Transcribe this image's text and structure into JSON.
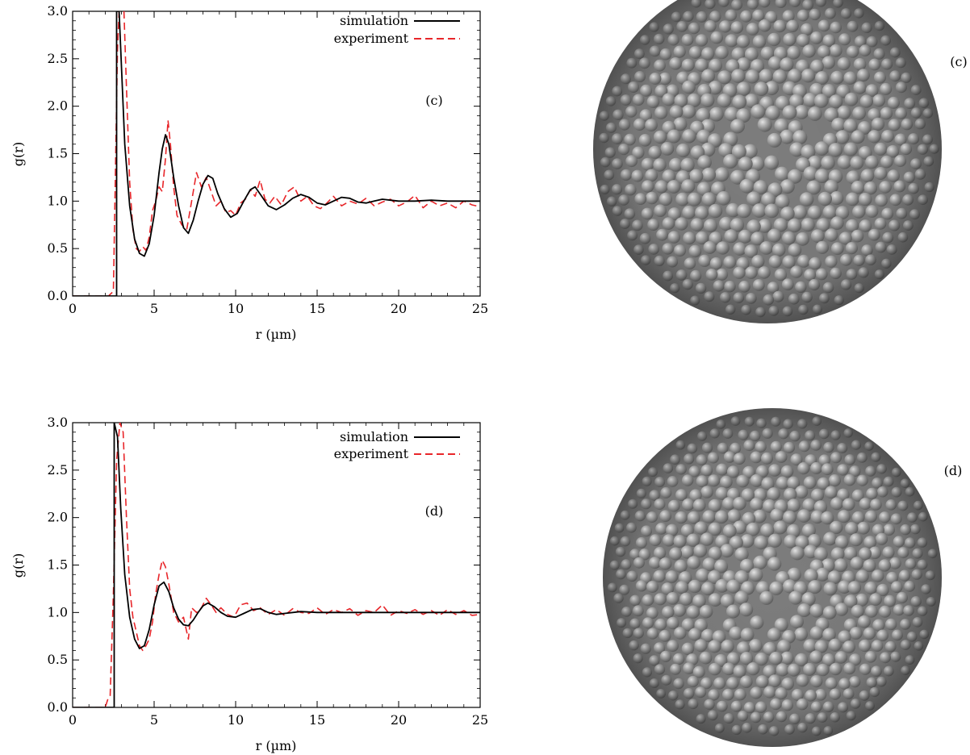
{
  "figure": {
    "panels": [
      {
        "letter": "(c)",
        "sphere_label": "(c)"
      },
      {
        "letter": "(d)",
        "sphere_label": "(d)"
      }
    ]
  },
  "chart_data": [
    {
      "type": "line",
      "panel": "(c)",
      "xlabel": "r (µm)",
      "ylabel": "g(r)",
      "xlim": [
        0,
        25
      ],
      "ylim": [
        0,
        3.0
      ],
      "xticks": [
        "0",
        "5",
        "10",
        "15",
        "20",
        "25"
      ],
      "yticks": [
        "0.0",
        "0.5",
        "1.0",
        "1.5",
        "2.0",
        "2.5",
        "3.0"
      ],
      "legend_position": "top-right",
      "series": [
        {
          "name": "simulation",
          "color": "#000000",
          "dash": "solid",
          "x": [
            0,
            2.7,
            2.7,
            2.85,
            3.0,
            3.2,
            3.5,
            3.8,
            4.1,
            4.4,
            4.7,
            5.0,
            5.3,
            5.5,
            5.7,
            5.9,
            6.2,
            6.5,
            6.8,
            7.1,
            7.4,
            7.7,
            8.0,
            8.3,
            8.6,
            8.9,
            9.3,
            9.7,
            10.1,
            10.5,
            10.9,
            11.2,
            11.6,
            12.0,
            12.5,
            13.0,
            13.5,
            14.0,
            14.5,
            15.0,
            15.5,
            16.0,
            16.5,
            17.0,
            17.5,
            18.0,
            18.5,
            19.0,
            19.5,
            20.0,
            21.0,
            22.0,
            23.0,
            24.0,
            25.0
          ],
          "y": [
            0,
            0,
            3.0,
            3.0,
            2.4,
            1.6,
            0.95,
            0.6,
            0.45,
            0.42,
            0.55,
            0.85,
            1.3,
            1.55,
            1.7,
            1.6,
            1.25,
            0.95,
            0.72,
            0.66,
            0.8,
            1.0,
            1.18,
            1.27,
            1.24,
            1.08,
            0.92,
            0.83,
            0.87,
            1.0,
            1.12,
            1.15,
            1.05,
            0.95,
            0.91,
            0.96,
            1.03,
            1.07,
            1.04,
            0.98,
            0.96,
            1.0,
            1.04,
            1.03,
            0.99,
            0.98,
            1.0,
            1.02,
            1.01,
            1.0,
            1.0,
            1.01,
            1.0,
            1.0,
            1.0
          ]
        },
        {
          "name": "experiment",
          "color": "#e8262a",
          "dash": "dashed",
          "x": [
            0,
            2.2,
            2.5,
            2.75,
            2.85,
            3.0,
            3.15,
            3.3,
            3.5,
            3.7,
            3.9,
            4.1,
            4.3,
            4.5,
            4.7,
            4.9,
            5.1,
            5.3,
            5.5,
            5.7,
            5.85,
            6.0,
            6.2,
            6.4,
            6.7,
            7.0,
            7.3,
            7.6,
            7.9,
            8.2,
            8.5,
            8.8,
            9.1,
            9.4,
            9.7,
            10.0,
            10.3,
            10.6,
            10.9,
            11.2,
            11.5,
            11.8,
            12.1,
            12.4,
            12.8,
            13.2,
            13.6,
            14.0,
            14.4,
            14.8,
            15.2,
            15.6,
            16.0,
            16.5,
            17.0,
            17.5,
            18.0,
            18.5,
            19.0,
            19.5,
            20.0,
            20.5,
            21.0,
            21.5,
            22.0,
            22.5,
            23.0,
            23.5,
            24.0,
            24.5,
            25.0
          ],
          "y": [
            0,
            0,
            0.05,
            2.6,
            3.0,
            3.0,
            3.0,
            2.2,
            1.2,
            0.7,
            0.5,
            0.47,
            0.52,
            0.48,
            0.62,
            0.9,
            1.0,
            1.15,
            1.1,
            1.45,
            1.85,
            1.6,
            1.15,
            0.85,
            0.75,
            0.7,
            1.0,
            1.3,
            1.15,
            1.25,
            1.1,
            0.95,
            1.0,
            0.88,
            0.9,
            0.85,
            0.98,
            1.02,
            1.12,
            1.05,
            1.22,
            1.02,
            0.98,
            1.05,
            0.96,
            1.1,
            1.15,
            1.0,
            1.05,
            0.95,
            0.92,
            0.98,
            1.05,
            0.95,
            1.0,
            0.97,
            1.03,
            0.95,
            0.99,
            1.02,
            0.95,
            0.99,
            1.06,
            0.93,
            1.0,
            0.95,
            0.98,
            0.93,
            1.0,
            0.96,
            0.94
          ]
        }
      ]
    },
    {
      "type": "line",
      "panel": "(d)",
      "xlabel": "r (µm)",
      "ylabel": "g(r)",
      "xlim": [
        0,
        25
      ],
      "ylim": [
        0,
        3.0
      ],
      "xticks": [
        "0",
        "5",
        "10",
        "15",
        "20",
        "25"
      ],
      "yticks": [
        "0.0",
        "0.5",
        "1.0",
        "1.5",
        "2.0",
        "2.5",
        "3.0"
      ],
      "legend_position": "top-right",
      "series": [
        {
          "name": "simulation",
          "color": "#000000",
          "dash": "solid",
          "x": [
            0,
            2.55,
            2.55,
            2.75,
            2.95,
            3.2,
            3.5,
            3.8,
            4.1,
            4.4,
            4.7,
            5.0,
            5.3,
            5.6,
            5.9,
            6.2,
            6.5,
            6.8,
            7.1,
            7.4,
            7.7,
            8.0,
            8.3,
            8.7,
            9.1,
            9.5,
            10.0,
            10.5,
            11.0,
            11.5,
            12.0,
            12.5,
            13.0,
            14.0,
            15.0,
            16.0,
            17.0,
            18.0,
            19.0,
            20.0,
            21.0,
            22.0,
            23.0,
            24.0,
            25.0
          ],
          "y": [
            0,
            0,
            3.0,
            2.85,
            2.1,
            1.4,
            0.95,
            0.72,
            0.62,
            0.65,
            0.82,
            1.08,
            1.28,
            1.32,
            1.22,
            1.05,
            0.93,
            0.87,
            0.86,
            0.92,
            1.0,
            1.07,
            1.1,
            1.06,
            1.0,
            0.96,
            0.95,
            0.99,
            1.03,
            1.04,
            1.0,
            0.98,
            0.99,
            1.01,
            1.0,
            1.0,
            1.0,
            1.0,
            1.0,
            1.0,
            1.0,
            1.0,
            1.0,
            1.0,
            1.0
          ]
        },
        {
          "name": "experiment",
          "color": "#e8262a",
          "dash": "dashed",
          "x": [
            0,
            2.0,
            2.15,
            2.3,
            2.5,
            2.7,
            2.9,
            3.1,
            3.3,
            3.5,
            3.7,
            3.9,
            4.1,
            4.3,
            4.5,
            4.7,
            4.9,
            5.1,
            5.3,
            5.5,
            5.7,
            5.9,
            6.2,
            6.5,
            6.8,
            7.1,
            7.3,
            7.6,
            7.9,
            8.2,
            8.5,
            8.8,
            9.1,
            9.5,
            9.9,
            10.3,
            10.7,
            11.1,
            11.5,
            12.0,
            12.5,
            13.0,
            13.5,
            14.0,
            14.5,
            15.0,
            15.5,
            16.0,
            16.5,
            17.0,
            17.5,
            18.0,
            18.5,
            19.0,
            19.5,
            20.0,
            20.5,
            21.0,
            21.5,
            22.0,
            22.5,
            23.0,
            23.5,
            24.0,
            24.5,
            25.0
          ],
          "y": [
            0,
            0,
            0.08,
            0.12,
            1.2,
            2.6,
            3.0,
            2.9,
            2.0,
            1.25,
            0.95,
            0.8,
            0.65,
            0.6,
            0.65,
            0.72,
            0.9,
            1.2,
            1.4,
            1.55,
            1.48,
            1.3,
            1.0,
            0.9,
            0.95,
            0.72,
            1.05,
            1.0,
            1.05,
            1.15,
            1.08,
            1.0,
            1.05,
            0.98,
            0.95,
            1.08,
            1.1,
            1.02,
            1.05,
            0.98,
            1.03,
            0.97,
            1.04,
            1.0,
            0.99,
            1.05,
            0.98,
            1.03,
            1.0,
            1.04,
            0.97,
            1.02,
            1.0,
            1.08,
            0.97,
            1.02,
            0.99,
            1.03,
            0.98,
            1.02,
            0.97,
            1.03,
            0.98,
            1.02,
            0.97,
            0.98
          ]
        }
      ]
    }
  ]
}
